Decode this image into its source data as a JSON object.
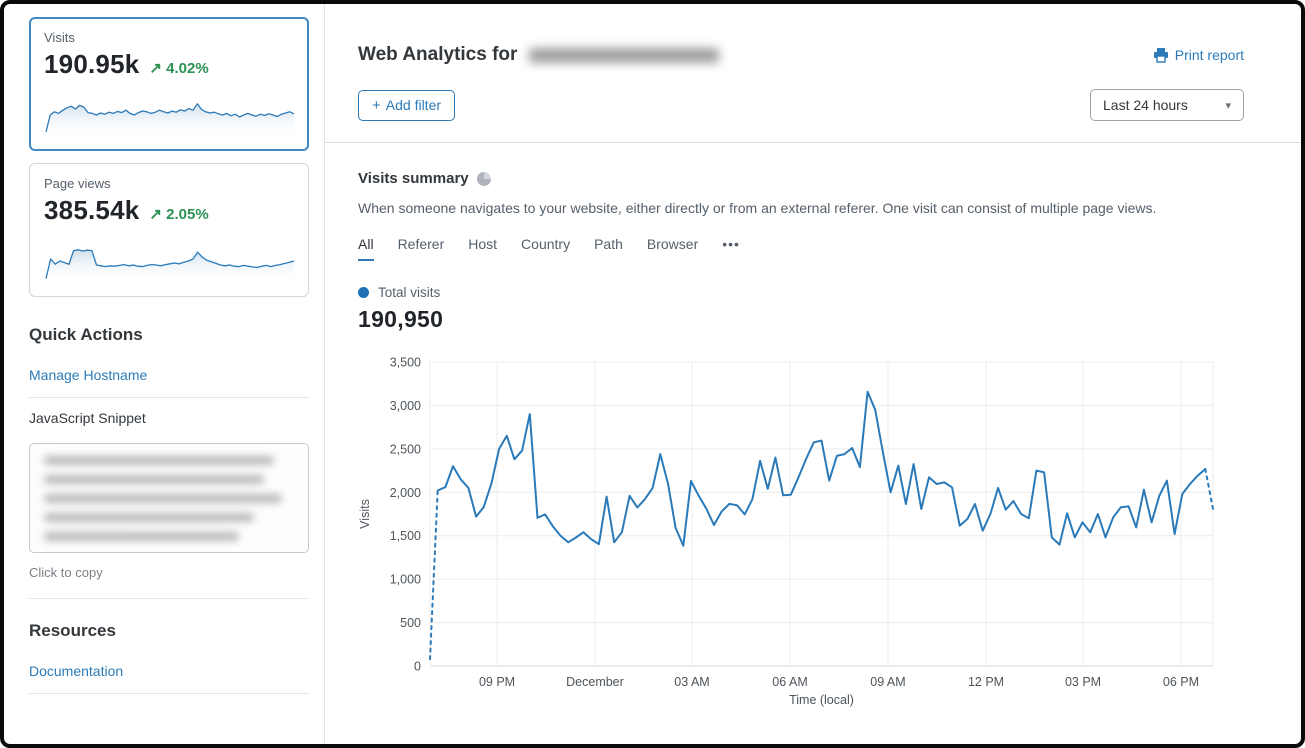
{
  "colors": {
    "accent_blue": "#2c7bb8",
    "chart_blue": "#2a7ab9",
    "positive_green": "#2b9152",
    "selected_card_border": "#3f8ac5",
    "legend_dot": "#2171b5"
  },
  "sidebar": {
    "metric_cards": [
      {
        "label": "Visits",
        "value": "190.95k",
        "arrow": "↗",
        "delta": "4.02%",
        "selected": true,
        "sparkline": [
          8,
          50,
          58,
          54,
          62,
          68,
          72,
          65,
          74,
          70,
          56,
          54,
          50,
          55,
          52,
          57,
          54,
          59,
          56,
          62,
          54,
          50,
          56,
          60,
          58,
          54,
          57,
          62,
          58,
          55,
          60,
          57,
          63,
          60,
          66,
          62,
          78,
          64,
          58,
          55,
          57,
          53,
          50,
          54,
          48,
          52,
          45,
          50,
          54,
          50,
          47,
          52,
          49,
          53,
          50,
          46,
          52,
          55,
          58,
          53
        ]
      },
      {
        "label": "Page views",
        "value": "385.54k",
        "arrow": "↗",
        "delta": "2.05%",
        "selected": false,
        "sparkline": [
          6,
          55,
          42,
          50,
          46,
          42,
          76,
          78,
          75,
          77,
          76,
          40,
          38,
          36,
          38,
          37,
          39,
          41,
          38,
          40,
          37,
          36,
          39,
          41,
          40,
          38,
          41,
          43,
          45,
          43,
          47,
          50,
          55,
          72,
          60,
          52,
          48,
          44,
          40,
          38,
          40,
          37,
          36,
          39,
          37,
          35,
          34,
          37,
          39,
          36,
          39,
          41,
          44,
          47,
          50
        ]
      }
    ],
    "quick_actions": {
      "title": "Quick Actions",
      "manage_hostname_label": "Manage Hostname",
      "snippet_label": "JavaScript Snippet",
      "copy_hint": "Click to copy"
    },
    "resources": {
      "title": "Resources",
      "documentation_label": "Documentation"
    }
  },
  "header": {
    "title": "Web Analytics for",
    "print_label": "Print report",
    "add_filter": {
      "icon": "+",
      "label": "Add filter"
    },
    "time_range": "Last 24 hours",
    "caret": "▾"
  },
  "summary": {
    "title": "Visits summary",
    "description": "When someone navigates to your website, either directly or from an external referer. One visit can consist of multiple page views.",
    "tabs": [
      "All",
      "Referer",
      "Host",
      "Country",
      "Path",
      "Browser"
    ],
    "active_tab": "All",
    "more_tabs": "•••",
    "legend_label": "Total visits",
    "total": "190,950"
  },
  "chart_data": {
    "type": "line",
    "title": "Total visits over time",
    "xlabel": "Time (local)",
    "ylabel": "Visits",
    "ylim": [
      0,
      3500
    ],
    "grid": true,
    "legend_position": "top-left",
    "y_ticks": [
      "0",
      "500",
      "1,000",
      "1,500",
      "2,000",
      "2,500",
      "3,000",
      "3,500"
    ],
    "x_ticks": [
      {
        "label": "09 PM",
        "f": 0.0856
      },
      {
        "label": "December",
        "f": 0.2107
      },
      {
        "label": "03 AM",
        "f": 0.3346
      },
      {
        "label": "06 AM",
        "f": 0.4598
      },
      {
        "label": "09 AM",
        "f": 0.5849
      },
      {
        "label": "12 PM",
        "f": 0.7101
      },
      {
        "label": "03 PM",
        "f": 0.834
      },
      {
        "label": "06 PM",
        "f": 0.9591
      }
    ],
    "x_grid_extra": [
      0,
      1
    ],
    "series": [
      {
        "name": "Total visits",
        "color": "#2a7ab9",
        "dashed_head_end_index": 1,
        "dashed_tail_start_index": 101,
        "values": [
          80,
          2020,
          2060,
          2300,
          2150,
          2050,
          1720,
          1830,
          2100,
          2500,
          2650,
          2380,
          2480,
          2900,
          1705,
          1745,
          1610,
          1500,
          1424,
          1480,
          1540,
          1460,
          1404,
          1950,
          1424,
          1540,
          1960,
          1825,
          1920,
          2050,
          2440,
          2100,
          1590,
          1385,
          2130,
          1960,
          1810,
          1623,
          1780,
          1866,
          1850,
          1745,
          1920,
          2363,
          2040,
          2400,
          1965,
          1972,
          2172,
          2383,
          2575,
          2595,
          2135,
          2420,
          2440,
          2510,
          2290,
          3157,
          2950,
          2460,
          2000,
          2306,
          1865,
          2325,
          1807,
          2172,
          2095,
          2114,
          2057,
          1615,
          1692,
          1865,
          1558,
          1750,
          2050,
          1800,
          1900,
          1750,
          1700,
          2250,
          2230,
          1481,
          1398,
          1758,
          1481,
          1654,
          1539,
          1750,
          1481,
          1712,
          1827,
          1838,
          1596,
          2030,
          1654,
          1960,
          2133,
          1519,
          1980,
          2095,
          2191,
          2268,
          1807
        ]
      }
    ]
  }
}
